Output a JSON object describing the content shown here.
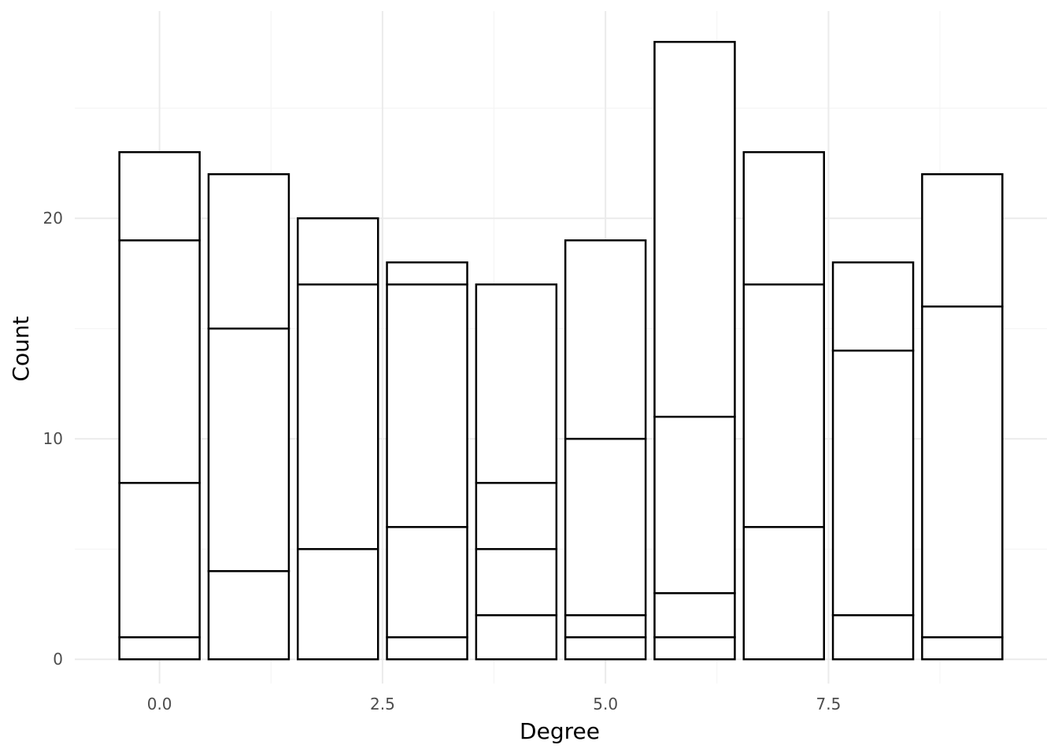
{
  "chart_data": {
    "type": "bar",
    "stacked": true,
    "title": "",
    "xlabel": "Degree",
    "ylabel": "Count",
    "x": [
      0,
      1,
      2,
      3,
      4,
      5,
      6,
      7,
      8,
      9
    ],
    "stack_boundaries": [
      [
        1,
        8,
        19,
        23
      ],
      [
        4,
        15,
        22
      ],
      [
        5,
        17,
        20
      ],
      [
        1,
        6,
        17,
        18
      ],
      [
        2,
        5,
        8,
        17
      ],
      [
        1,
        2,
        10,
        19
      ],
      [
        1,
        3,
        11,
        28
      ],
      [
        6,
        17,
        23
      ],
      [
        2,
        14,
        18
      ],
      [
        1,
        16,
        22
      ]
    ],
    "totals": [
      23,
      22,
      20,
      18,
      17,
      19,
      28,
      23,
      18,
      22
    ],
    "xlim": [
      -0.95,
      9.95
    ],
    "ylim": [
      -1.1,
      29.4
    ],
    "x_ticks": [
      {
        "value": 0,
        "label": "0.0"
      },
      {
        "value": 2.5,
        "label": "2.5"
      },
      {
        "value": 5,
        "label": "5.0"
      },
      {
        "value": 7.5,
        "label": "7.5"
      }
    ],
    "x_minor_ticks": [
      1.25,
      3.75,
      6.25,
      8.75
    ],
    "y_ticks": [
      {
        "value": 0,
        "label": "0"
      },
      {
        "value": 10,
        "label": "10"
      },
      {
        "value": 20,
        "label": "20"
      }
    ],
    "y_minor_ticks": [
      5,
      15,
      25
    ],
    "bar_width": 0.9,
    "grid": true,
    "legend": "none",
    "colors": {
      "bar_fill": "#ffffff",
      "bar_stroke": "#000000",
      "grid_major": "#ebebeb",
      "grid_minor": "#f4f4f4",
      "tick_text": "#4d4d4d"
    }
  }
}
